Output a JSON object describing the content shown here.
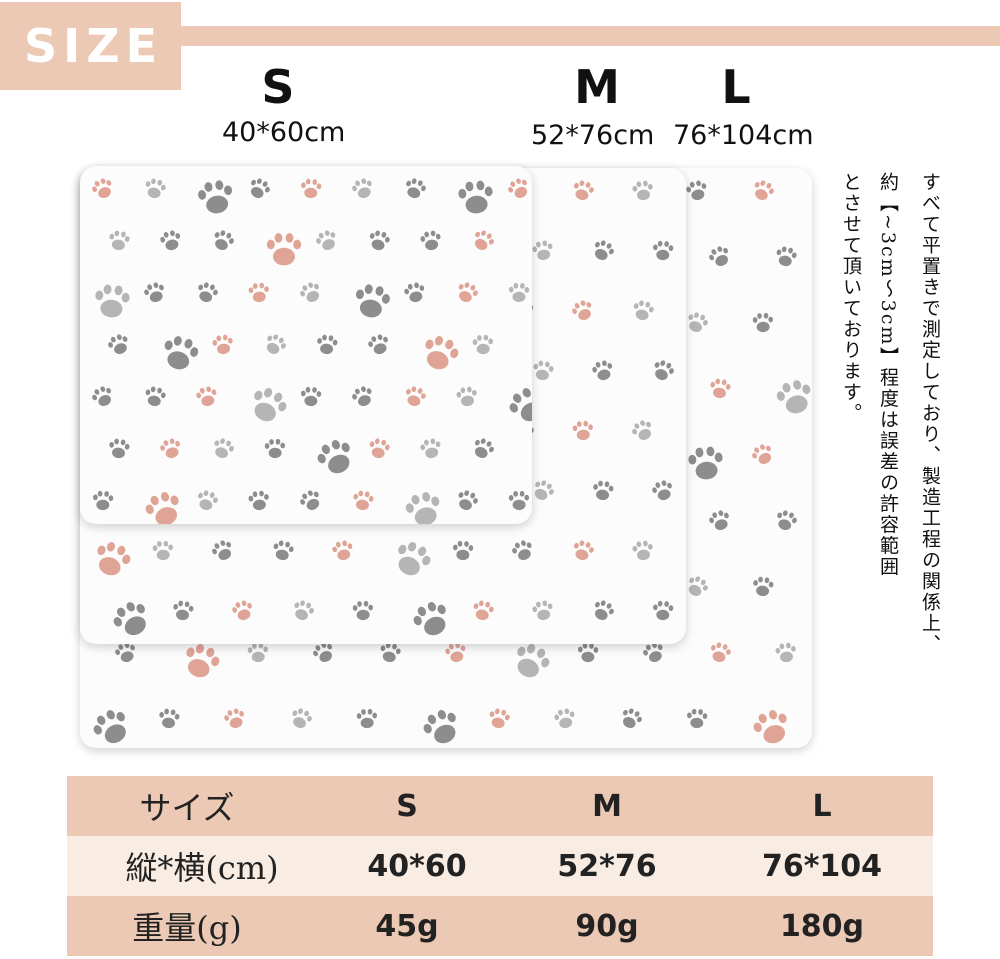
{
  "header": {
    "title": "SIZE"
  },
  "sizes": [
    {
      "name": "S",
      "dims": "40*60cm"
    },
    {
      "name": "M",
      "dims": "52*76cm"
    },
    {
      "name": "L",
      "dims": "76*104cm"
    }
  ],
  "note": {
    "lines": [
      "すべて平置きで測定しており、製造工程の関係上、",
      "約【~3cm～3cm】程度は誤差の許容範囲",
      "とさせて頂いております。"
    ]
  },
  "table": {
    "headers": [
      "サイズ",
      "S",
      "M",
      "L"
    ],
    "rows": [
      [
        "縦*横(cm)",
        "40*60",
        "52*76",
        "76*104"
      ],
      [
        "重量(g)",
        "45g",
        "90g",
        "180g"
      ]
    ]
  },
  "colors": {
    "accent": "#ebc9b4",
    "row_dark": "#ebc9b4",
    "row_light": "#f8ece3",
    "paw_gray": "#8d8d8d",
    "paw_pink": "#e0a496"
  }
}
